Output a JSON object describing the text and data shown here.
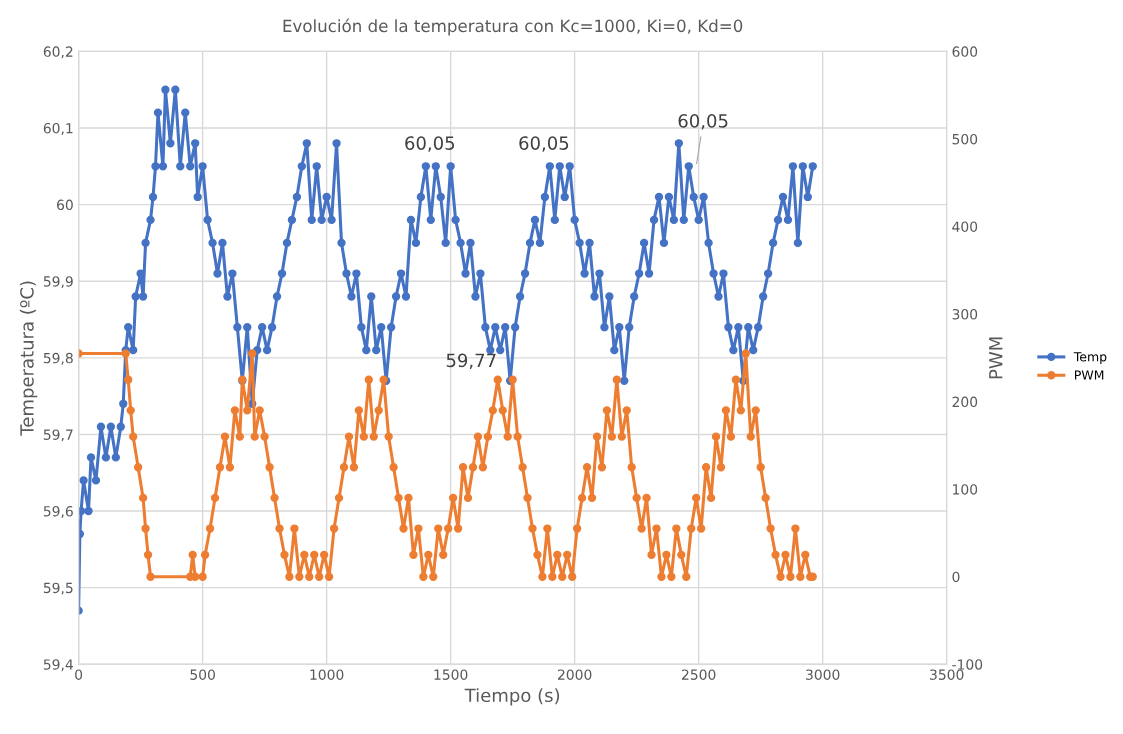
{
  "chart_data": {
    "type": "line",
    "title": "Evolución de la temperatura con Kc=1000, Ki=0, Kd=0",
    "xlabel": "Tiempo (s)",
    "ylabel": "Temperatura (ºC)",
    "y2label": "PWM",
    "xlim": [
      0,
      3500
    ],
    "xticks": [
      0,
      500,
      1000,
      1500,
      2000,
      2500,
      3000,
      3500
    ],
    "ylim": [
      59.4,
      60.2
    ],
    "yticks": [
      {
        "value": 59.4,
        "label": "59,4"
      },
      {
        "value": 59.5,
        "label": "59,5"
      },
      {
        "value": 59.6,
        "label": "59,6"
      },
      {
        "value": 59.7,
        "label": "59,7"
      },
      {
        "value": 59.8,
        "label": "59,8"
      },
      {
        "value": 59.9,
        "label": "59,9"
      },
      {
        "value": 60,
        "label": "60"
      },
      {
        "value": 60.1,
        "label": "60,1"
      },
      {
        "value": 60.2,
        "label": "60,2"
      }
    ],
    "y2lim": [
      -100,
      600
    ],
    "y2ticks": [
      -100,
      0,
      100,
      200,
      300,
      400,
      500,
      600
    ],
    "grid": true,
    "legend": "right",
    "marker": "circle",
    "line_style": "solid",
    "series": [
      {
        "name": "Temp",
        "color": "#4472c4",
        "x": [
          0,
          5,
          10,
          20,
          40,
          50,
          70,
          90,
          110,
          130,
          150,
          170,
          180,
          190,
          200,
          220,
          230,
          250,
          260,
          270,
          290,
          300,
          310,
          320,
          340,
          350,
          370,
          390,
          410,
          430,
          450,
          470,
          480,
          500,
          520,
          540,
          560,
          580,
          600,
          620,
          640,
          660,
          680,
          700,
          720,
          740,
          760,
          780,
          800,
          820,
          840,
          860,
          880,
          900,
          920,
          940,
          960,
          980,
          1000,
          1020,
          1040,
          1060,
          1080,
          1100,
          1120,
          1140,
          1160,
          1180,
          1200,
          1220,
          1240,
          1260,
          1280,
          1300,
          1320,
          1340,
          1360,
          1380,
          1400,
          1420,
          1440,
          1460,
          1480,
          1500,
          1520,
          1540,
          1560,
          1580,
          1600,
          1620,
          1640,
          1660,
          1680,
          1700,
          1720,
          1740,
          1760,
          1780,
          1800,
          1820,
          1840,
          1860,
          1880,
          1900,
          1920,
          1940,
          1960,
          1980,
          2000,
          2020,
          2040,
          2060,
          2080,
          2100,
          2120,
          2140,
          2160,
          2180,
          2200,
          2220,
          2240,
          2260,
          2280,
          2300,
          2320,
          2340,
          2360,
          2380,
          2400,
          2420,
          2440,
          2460,
          2480,
          2500,
          2520,
          2540,
          2560,
          2580,
          2600,
          2620,
          2640,
          2660,
          2680,
          2700,
          2720,
          2740,
          2760,
          2780,
          2800,
          2820,
          2840,
          2860,
          2880,
          2900,
          2920,
          2940,
          2960
        ],
        "values": [
          59.47,
          59.57,
          59.6,
          59.64,
          59.6,
          59.67,
          59.64,
          59.71,
          59.67,
          59.71,
          59.67,
          59.71,
          59.74,
          59.81,
          59.84,
          59.81,
          59.88,
          59.91,
          59.88,
          59.95,
          59.98,
          60.01,
          60.05,
          60.12,
          60.05,
          60.15,
          60.08,
          60.15,
          60.05,
          60.12,
          60.05,
          60.08,
          60.01,
          60.05,
          59.98,
          59.95,
          59.91,
          59.95,
          59.88,
          59.91,
          59.84,
          59.77,
          59.84,
          59.74,
          59.81,
          59.84,
          59.81,
          59.84,
          59.88,
          59.91,
          59.95,
          59.98,
          60.01,
          60.05,
          60.08,
          59.98,
          60.05,
          59.98,
          60.01,
          59.98,
          60.08,
          59.95,
          59.91,
          59.88,
          59.91,
          59.84,
          59.81,
          59.88,
          59.81,
          59.84,
          59.77,
          59.84,
          59.88,
          59.91,
          59.88,
          59.98,
          59.95,
          60.01,
          60.05,
          59.98,
          60.05,
          60.01,
          59.95,
          60.05,
          59.98,
          59.95,
          59.91,
          59.95,
          59.88,
          59.91,
          59.84,
          59.81,
          59.84,
          59.81,
          59.84,
          59.77,
          59.84,
          59.88,
          59.91,
          59.95,
          59.98,
          59.95,
          60.01,
          60.05,
          59.98,
          60.05,
          60.01,
          60.05,
          59.98,
          59.95,
          59.91,
          59.95,
          59.88,
          59.91,
          59.84,
          59.88,
          59.81,
          59.84,
          59.77,
          59.84,
          59.88,
          59.91,
          59.95,
          59.91,
          59.98,
          60.01,
          59.95,
          60.01,
          59.98,
          60.08,
          59.98,
          60.05,
          60.01,
          59.98,
          60.01,
          59.95,
          59.91,
          59.88,
          59.91,
          59.84,
          59.81,
          59.84,
          59.77,
          59.84,
          59.81,
          59.84,
          59.88,
          59.91,
          59.95,
          59.98,
          60.01,
          59.98,
          60.05,
          59.95,
          60.05,
          60.01,
          60.05
        ]
      },
      {
        "name": "PWM",
        "color": "#ed7d31",
        "axis": "y2",
        "x": [
          0,
          190,
          200,
          210,
          220,
          240,
          260,
          270,
          280,
          290,
          450,
          460,
          470,
          500,
          510,
          530,
          550,
          570,
          590,
          610,
          630,
          650,
          660,
          680,
          700,
          710,
          730,
          750,
          770,
          790,
          810,
          830,
          850,
          870,
          890,
          910,
          930,
          950,
          970,
          990,
          1010,
          1030,
          1050,
          1070,
          1090,
          1110,
          1130,
          1150,
          1170,
          1190,
          1210,
          1230,
          1250,
          1270,
          1290,
          1310,
          1330,
          1350,
          1370,
          1390,
          1410,
          1430,
          1450,
          1470,
          1490,
          1510,
          1530,
          1550,
          1570,
          1590,
          1610,
          1630,
          1650,
          1670,
          1690,
          1710,
          1730,
          1750,
          1770,
          1790,
          1810,
          1830,
          1850,
          1870,
          1890,
          1910,
          1930,
          1950,
          1970,
          1990,
          2010,
          2030,
          2050,
          2070,
          2090,
          2110,
          2130,
          2150,
          2170,
          2190,
          2210,
          2230,
          2250,
          2270,
          2290,
          2310,
          2330,
          2350,
          2370,
          2390,
          2410,
          2430,
          2450,
          2470,
          2490,
          2510,
          2530,
          2550,
          2570,
          2590,
          2610,
          2630,
          2650,
          2670,
          2690,
          2710,
          2730,
          2750,
          2770,
          2790,
          2810,
          2830,
          2850,
          2870,
          2890,
          2910,
          2930,
          2950,
          2960
        ],
        "values": [
          255,
          255,
          225,
          190,
          160,
          125,
          90,
          55,
          25,
          0,
          0,
          25,
          0,
          0,
          25,
          55,
          90,
          125,
          160,
          125,
          190,
          160,
          225,
          190,
          255,
          160,
          190,
          160,
          125,
          90,
          55,
          25,
          0,
          55,
          0,
          25,
          0,
          25,
          0,
          25,
          0,
          55,
          90,
          125,
          160,
          125,
          190,
          160,
          225,
          160,
          190,
          225,
          160,
          125,
          90,
          55,
          90,
          25,
          55,
          0,
          25,
          0,
          55,
          25,
          55,
          90,
          55,
          125,
          90,
          125,
          160,
          125,
          160,
          190,
          225,
          190,
          160,
          225,
          160,
          125,
          90,
          55,
          25,
          0,
          55,
          0,
          25,
          0,
          25,
          0,
          55,
          90,
          125,
          90,
          160,
          125,
          190,
          160,
          225,
          160,
          190,
          125,
          90,
          55,
          90,
          25,
          55,
          0,
          25,
          0,
          55,
          25,
          0,
          55,
          90,
          55,
          125,
          90,
          160,
          125,
          190,
          160,
          225,
          190,
          255,
          160,
          190,
          125,
          90,
          55,
          25,
          0,
          25,
          0,
          55,
          0,
          25,
          0,
          0
        ]
      }
    ],
    "annotations": [
      {
        "text": "60,05",
        "x": 1500,
        "y": 60.05
      },
      {
        "text": "60,05",
        "x": 1960,
        "y": 60.05
      },
      {
        "text": "60,05",
        "x": 2490,
        "y": 60.05
      },
      {
        "text": "59,77",
        "x": 1740,
        "y": 59.77
      }
    ]
  }
}
